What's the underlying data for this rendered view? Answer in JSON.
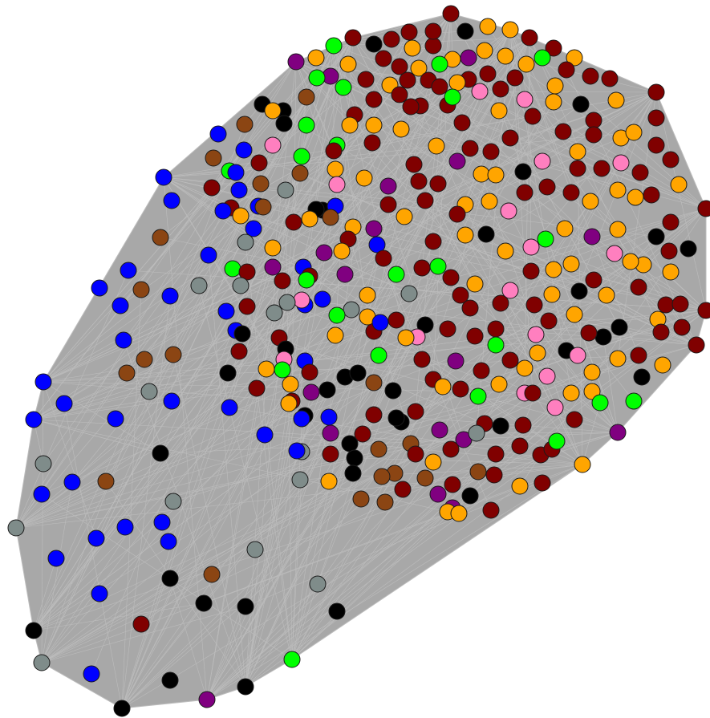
{
  "colors": {
    "background": "#ffffff",
    "hull_fill": "#a8a8a8",
    "edge": "#bdbdbd",
    "node_stroke": "#1a1a1a",
    "node_types": {
      "maroon": "#800000",
      "orange": "#ffa500",
      "blue": "#0000ff",
      "black": "#000000",
      "gray": "#7f8c8a",
      "brown": "#8b4513",
      "green": "#00ff00",
      "purple": "#800080",
      "pink": "#ff7fbf"
    }
  },
  "chart_data": {
    "type": "network-graph",
    "title": "",
    "node_count": 402,
    "node_types": [
      {
        "id": "maroon",
        "color": "#800000"
      },
      {
        "id": "orange",
        "color": "#ffa500"
      },
      {
        "id": "blue",
        "color": "#0000ff"
      },
      {
        "id": "black",
        "color": "#000000"
      },
      {
        "id": "gray",
        "color": "#7f8c8a"
      },
      {
        "id": "brown",
        "color": "#8b4513"
      },
      {
        "id": "green",
        "color": "#00ff00"
      },
      {
        "id": "purple",
        "color": "#800080"
      },
      {
        "id": "pink",
        "color": "#ff7fbf"
      }
    ],
    "edges_style": "dense all-to-all mesh forming a gray convex envelope"
  }
}
